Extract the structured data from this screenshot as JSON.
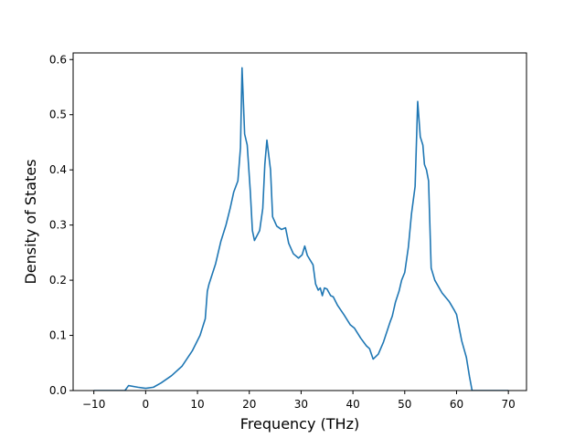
{
  "chart_data": {
    "type": "line",
    "title": "",
    "xlabel": "Frequency (THz)",
    "ylabel": "Density of States",
    "xlim": [
      -14.0,
      73.5
    ],
    "ylim": [
      0.0,
      0.612
    ],
    "grid": false,
    "legend": "none",
    "xticks": [
      -10,
      0,
      10,
      20,
      30,
      40,
      50,
      60,
      70
    ],
    "yticks": [
      0.0,
      0.1,
      0.2,
      0.3,
      0.4,
      0.5,
      0.6
    ],
    "series": [
      {
        "color": "#1f77b4",
        "x": [
          -10,
          -4.0,
          -3.3,
          -1.5,
          0,
          1.5,
          3,
          5,
          7,
          9,
          10.5,
          11.5,
          11.9,
          12.2,
          13.5,
          14.5,
          15.5,
          16.3,
          17.0,
          17.8,
          18.3,
          18.6,
          19.1,
          19.6,
          20.2,
          20.6,
          21.0,
          22.0,
          22.6,
          23.0,
          23.4,
          24.1,
          24.5,
          25.3,
          26.2,
          27.0,
          27.6,
          28.5,
          29.5,
          30.2,
          30.7,
          31.2,
          32.3,
          32.8,
          33.3,
          33.7,
          34.1,
          34.5,
          35.0,
          35.7,
          36.2,
          37.0,
          38.3,
          39.5,
          40.3,
          41.5,
          42.6,
          43.2,
          43.9,
          44.9,
          45.9,
          47.2,
          47.6,
          48.2,
          48.9,
          49.4,
          50.0,
          50.7,
          51.3,
          52.0,
          52.5,
          53.0,
          53.5,
          53.8,
          54.2,
          54.6,
          55.1,
          55.8,
          57.2,
          58.6,
          59.6,
          60.0,
          61.0,
          61.9,
          62.5,
          63.0,
          65,
          70
        ],
        "y": [
          0.0,
          0.0,
          0.009,
          0.006,
          0.004,
          0.006,
          0.014,
          0.027,
          0.044,
          0.072,
          0.1,
          0.13,
          0.18,
          0.192,
          0.23,
          0.27,
          0.3,
          0.33,
          0.36,
          0.38,
          0.44,
          0.585,
          0.465,
          0.445,
          0.36,
          0.29,
          0.272,
          0.29,
          0.33,
          0.41,
          0.454,
          0.4,
          0.315,
          0.298,
          0.292,
          0.295,
          0.267,
          0.248,
          0.24,
          0.246,
          0.262,
          0.245,
          0.228,
          0.193,
          0.182,
          0.186,
          0.172,
          0.186,
          0.184,
          0.172,
          0.17,
          0.155,
          0.137,
          0.119,
          0.113,
          0.095,
          0.081,
          0.076,
          0.057,
          0.066,
          0.088,
          0.125,
          0.135,
          0.16,
          0.18,
          0.2,
          0.214,
          0.26,
          0.32,
          0.37,
          0.524,
          0.46,
          0.445,
          0.41,
          0.4,
          0.38,
          0.222,
          0.2,
          0.177,
          0.161,
          0.145,
          0.138,
          0.09,
          0.06,
          0.025,
          0.0,
          0.0,
          0.0
        ]
      }
    ]
  }
}
